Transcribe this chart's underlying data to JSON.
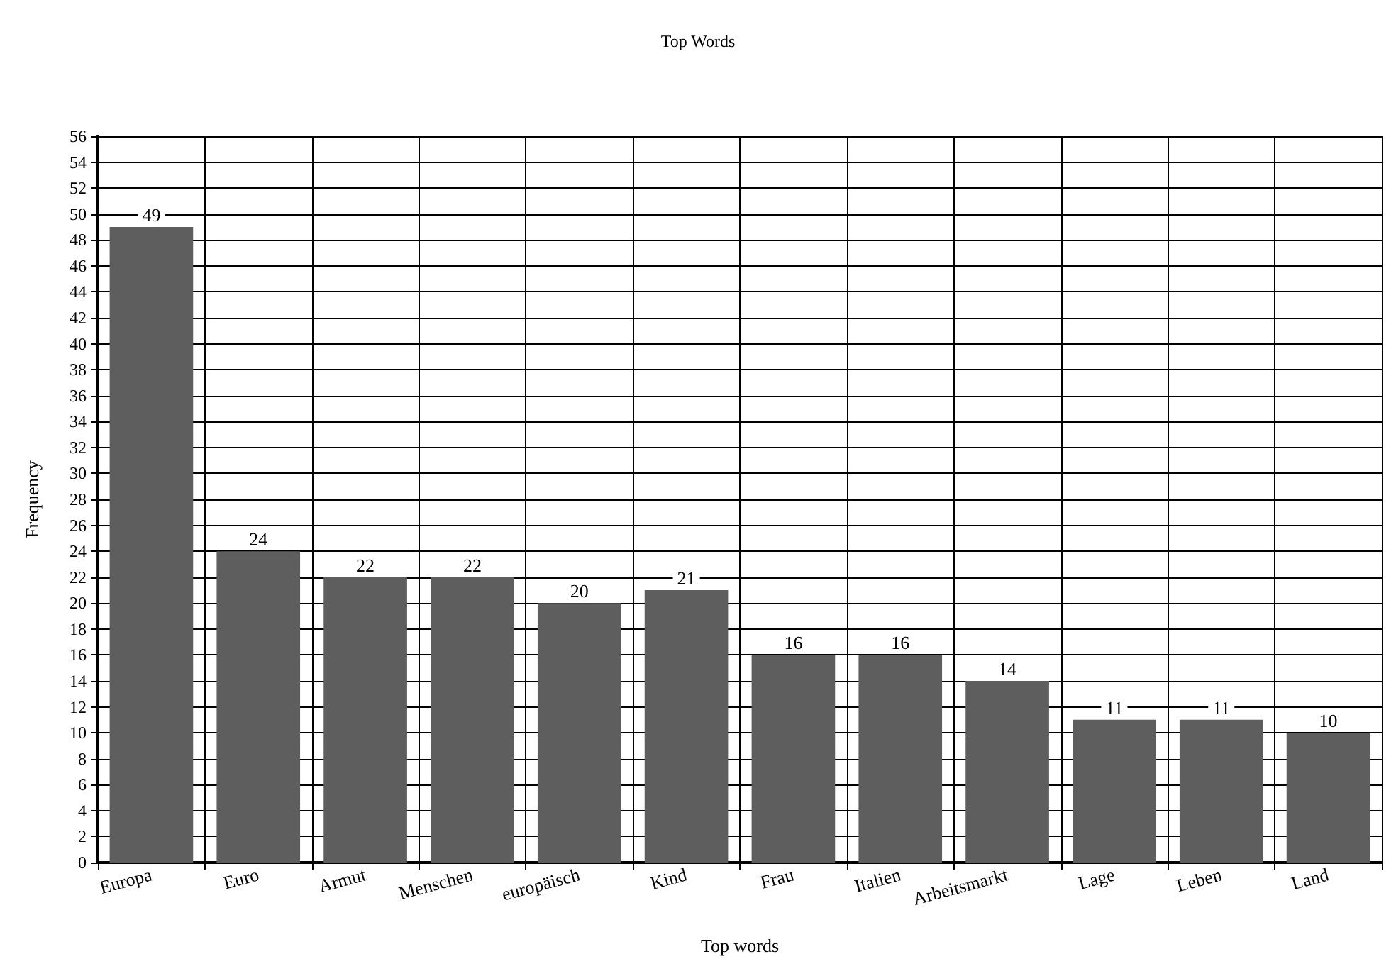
{
  "chart_data": {
    "type": "bar",
    "title": "Top Words",
    "xlabel": "Top words",
    "ylabel": "Frequency",
    "categories": [
      "Europa",
      "Euro",
      "Armut",
      "Menschen",
      "europäisch",
      "Kind",
      "Frau",
      "Italien",
      "Arbeitsmarkt",
      "Lage",
      "Leben",
      "Land"
    ],
    "values": [
      49,
      24,
      22,
      22,
      20,
      21,
      16,
      16,
      14,
      11,
      11,
      10
    ],
    "color": "#5e5e5e",
    "ylim": [
      0,
      56
    ],
    "yticks": [
      0,
      2,
      4,
      6,
      8,
      10,
      12,
      14,
      16,
      18,
      20,
      22,
      24,
      26,
      28,
      30,
      32,
      34,
      36,
      38,
      40,
      42,
      44,
      46,
      48,
      50,
      52,
      54,
      56
    ],
    "grid": true,
    "data_labels": true
  }
}
